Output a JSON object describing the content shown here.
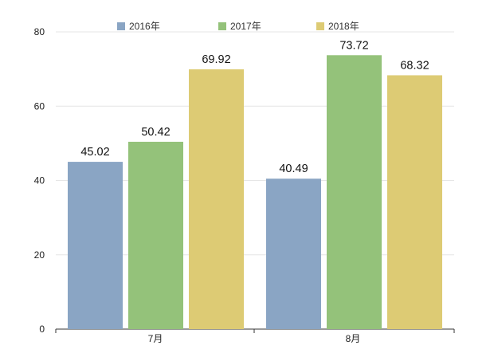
{
  "chart_data": {
    "type": "bar",
    "categories": [
      "7月",
      "8月"
    ],
    "series": [
      {
        "name": "2016年",
        "values": [
          45.02,
          40.49
        ],
        "color": "#8aa5c4"
      },
      {
        "name": "2017年",
        "values": [
          50.42,
          73.72
        ],
        "color": "#94c27a"
      },
      {
        "name": "2018年",
        "values": [
          69.92,
          68.32
        ],
        "color": "#ddcb74"
      }
    ],
    "value_labels": [
      [
        "45.02",
        "40.49"
      ],
      [
        "50.42",
        "73.72"
      ],
      [
        "69.92",
        "68.32"
      ]
    ],
    "ylim": [
      0,
      80
    ],
    "yticks": [
      0,
      20,
      40,
      60,
      80
    ],
    "grid": true,
    "legend_position": "top"
  }
}
